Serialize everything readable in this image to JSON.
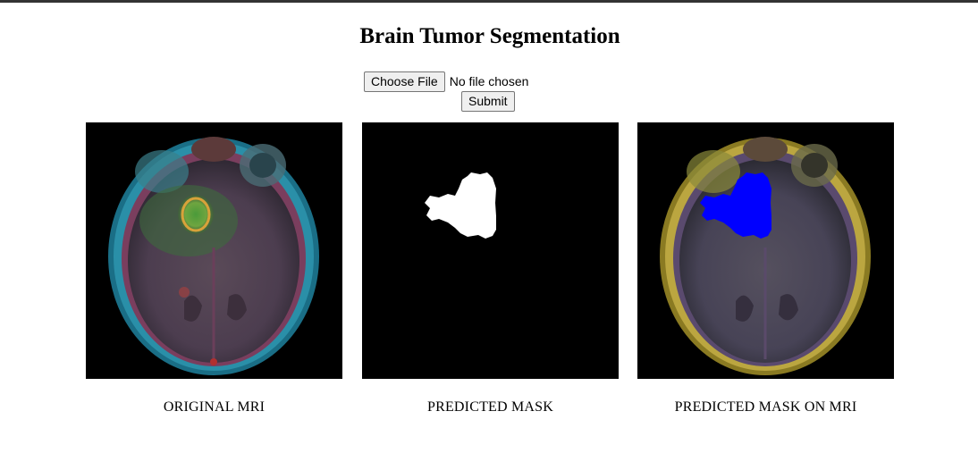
{
  "page": {
    "title": "Brain Tumor Segmentation"
  },
  "upload_form": {
    "choose_file_label": "Choose File",
    "file_status": "No file chosen",
    "submit_label": "Submit"
  },
  "results": [
    {
      "caption": "ORIGINAL MRI"
    },
    {
      "caption": "PREDICTED MASK"
    },
    {
      "caption": "PREDICTED MASK ON MRI"
    }
  ],
  "colors": {
    "mask_fill": "#ffffff",
    "overlay_fill": "#0000ff",
    "panel_background": "#000000"
  }
}
